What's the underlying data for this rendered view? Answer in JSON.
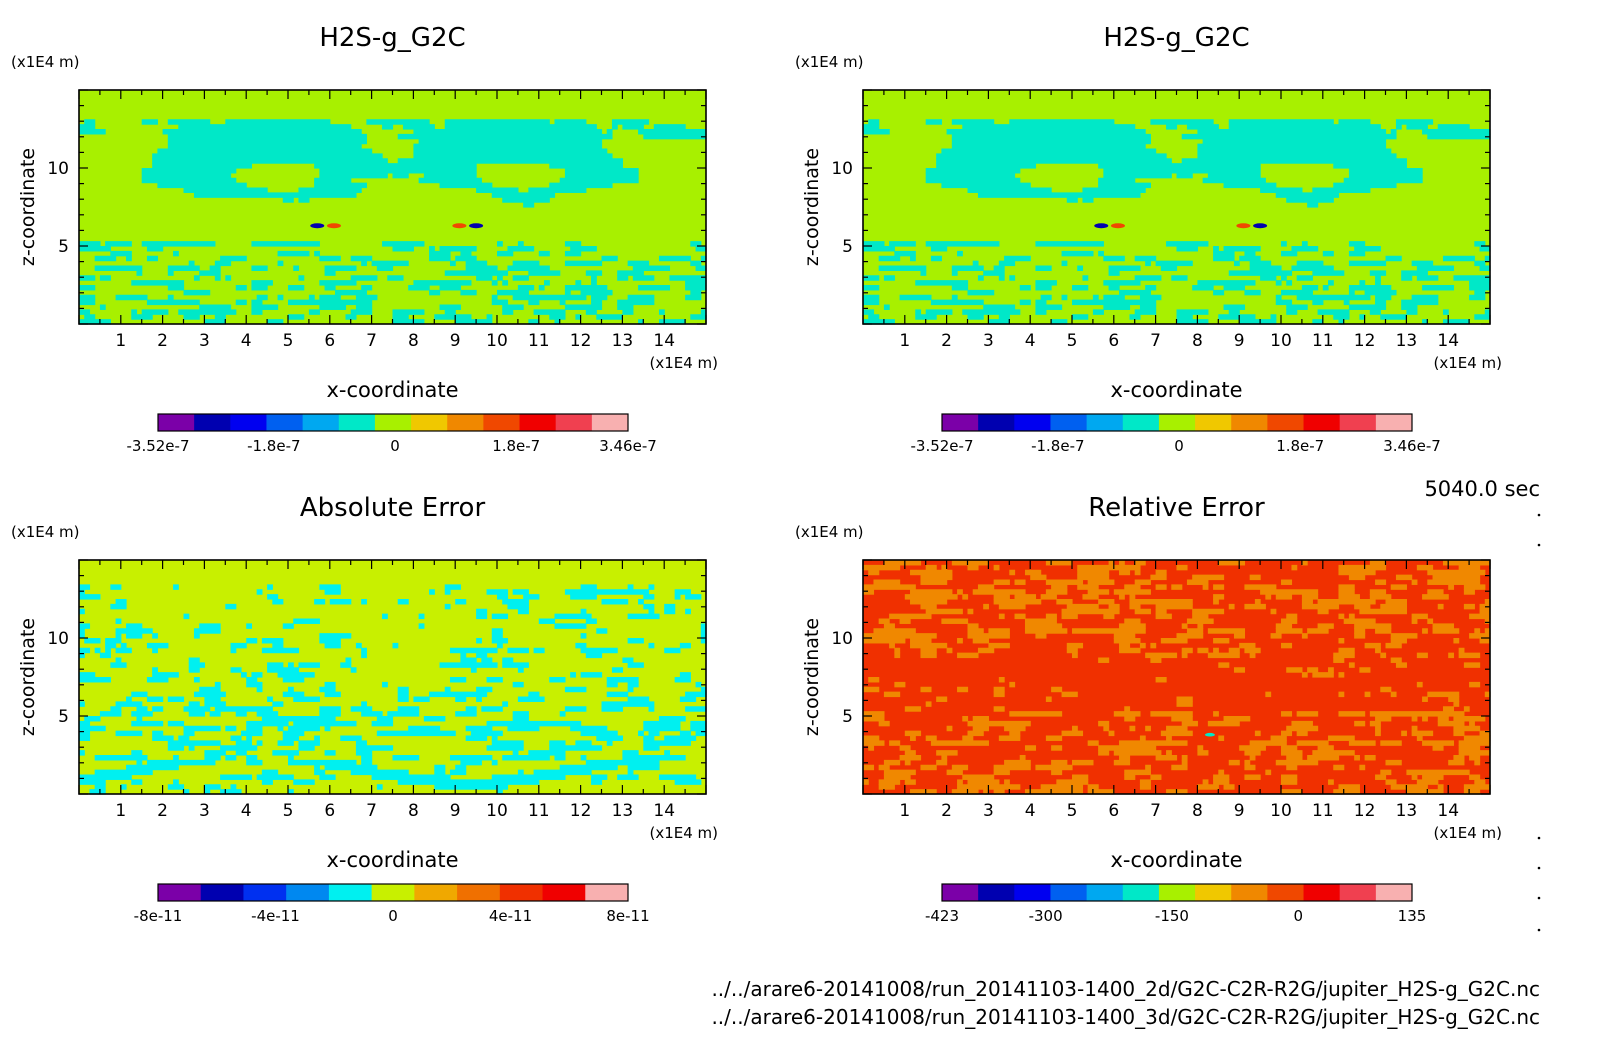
{
  "time_label": "5040.0 sec",
  "files": [
    "../../arare6-20141008/run_20141103-1400_2d/G2C-C2R-R2G/jupiter_H2S-g_G2C.nc",
    "../../arare6-20141008/run_20141103-1400_3d/G2C-C2R-R2G/jupiter_H2S-g_G2C.nc"
  ],
  "chart_data": [
    {
      "type": "heatmap",
      "title": "H2S-g_G2C",
      "xlabel": "x-coordinate",
      "ylabel": "z-coordinate",
      "x_unit": "(x1E4 m)",
      "y_unit": "(x1E4 m)",
      "xlim": [
        0,
        15
      ],
      "ylim": [
        0,
        15
      ],
      "xticks": [
        1,
        2,
        3,
        4,
        5,
        6,
        7,
        8,
        9,
        10,
        11,
        12,
        13,
        14
      ],
      "yticks": [
        5,
        10
      ],
      "grid": false,
      "colorbar": {
        "colors": [
          "#7b00a8",
          "#0000b0",
          "#0000f0",
          "#0060f0",
          "#00a8f0",
          "#00e8c8",
          "#a8f000",
          "#f0c800",
          "#f08800",
          "#f04800",
          "#f00000",
          "#f04050",
          "#f8b0b0"
        ],
        "labels": [
          {
            "value": -3.52e-07,
            "text": "-3.52e-7"
          },
          {
            "value": -1.8e-07,
            "text": "-1.8e-7"
          },
          {
            "value": 0,
            "text": "0"
          },
          {
            "value": 1.8e-07,
            "text": "1.8e-7"
          },
          {
            "value": 3.46e-07,
            "text": "3.46e-7"
          }
        ]
      },
      "field": {
        "base": "#a8f000",
        "secondary": "#00e8c8",
        "pattern": "cloud"
      }
    },
    {
      "type": "heatmap",
      "title": "H2S-g_G2C",
      "xlabel": "x-coordinate",
      "ylabel": "z-coordinate",
      "x_unit": "(x1E4 m)",
      "y_unit": "(x1E4 m)",
      "xlim": [
        0,
        15
      ],
      "ylim": [
        0,
        15
      ],
      "xticks": [
        1,
        2,
        3,
        4,
        5,
        6,
        7,
        8,
        9,
        10,
        11,
        12,
        13,
        14
      ],
      "yticks": [
        5,
        10
      ],
      "grid": false,
      "colorbar": {
        "colors": [
          "#7b00a8",
          "#0000b0",
          "#0000f0",
          "#0060f0",
          "#00a8f0",
          "#00e8c8",
          "#a8f000",
          "#f0c800",
          "#f08800",
          "#f04800",
          "#f00000",
          "#f04050",
          "#f8b0b0"
        ],
        "labels": [
          {
            "value": -3.52e-07,
            "text": "-3.52e-7"
          },
          {
            "value": -1.8e-07,
            "text": "-1.8e-7"
          },
          {
            "value": 0,
            "text": "0"
          },
          {
            "value": 1.8e-07,
            "text": "1.8e-7"
          },
          {
            "value": 3.46e-07,
            "text": "3.46e-7"
          }
        ]
      },
      "field": {
        "base": "#a8f000",
        "secondary": "#00e8c8",
        "pattern": "cloud"
      }
    },
    {
      "type": "heatmap",
      "title": "Absolute Error",
      "xlabel": "x-coordinate",
      "ylabel": "z-coordinate",
      "x_unit": "(x1E4 m)",
      "y_unit": "(x1E4 m)",
      "xlim": [
        0,
        15
      ],
      "ylim": [
        0,
        15
      ],
      "xticks": [
        1,
        2,
        3,
        4,
        5,
        6,
        7,
        8,
        9,
        10,
        11,
        12,
        13,
        14
      ],
      "yticks": [
        5,
        10
      ],
      "grid": false,
      "colorbar": {
        "colors": [
          "#7b00a8",
          "#0000b0",
          "#0030f0",
          "#0088f0",
          "#00f0f0",
          "#c8f000",
          "#f0a800",
          "#f07000",
          "#f03000",
          "#f00000",
          "#f8b0b0"
        ],
        "labels": [
          {
            "value": -8e-11,
            "text": "-8e-11"
          },
          {
            "value": -4e-11,
            "text": "-4e-11"
          },
          {
            "value": 0,
            "text": "0"
          },
          {
            "value": 4e-11,
            "text": "4e-11"
          },
          {
            "value": 8e-11,
            "text": "8e-11"
          }
        ]
      },
      "field": {
        "base": "#c8f000",
        "secondary": "#00f0f0",
        "pattern": "error"
      }
    },
    {
      "type": "heatmap",
      "title": "Relative Error",
      "xlabel": "x-coordinate",
      "ylabel": "z-coordinate",
      "x_unit": "(x1E4 m)",
      "y_unit": "(x1E4 m)",
      "xlim": [
        0,
        15
      ],
      "ylim": [
        0,
        15
      ],
      "xticks": [
        1,
        2,
        3,
        4,
        5,
        6,
        7,
        8,
        9,
        10,
        11,
        12,
        13,
        14
      ],
      "yticks": [
        5,
        10
      ],
      "grid": false,
      "colorbar": {
        "colors": [
          "#7b00a8",
          "#0000b0",
          "#0000f0",
          "#0060f0",
          "#00a8f0",
          "#00e8c8",
          "#a8f000",
          "#f0c800",
          "#f08800",
          "#f04800",
          "#f00000",
          "#f04050",
          "#f8b0b0"
        ],
        "labels": [
          {
            "value": -423,
            "text": "-423"
          },
          {
            "value": -300,
            "text": "-300"
          },
          {
            "value": -150,
            "text": "-150"
          },
          {
            "value": 0,
            "text": "0"
          },
          {
            "value": 135,
            "text": "135"
          }
        ]
      },
      "field": {
        "base": "#f03000",
        "secondary": "#f08800",
        "pattern": "relerr"
      }
    }
  ]
}
